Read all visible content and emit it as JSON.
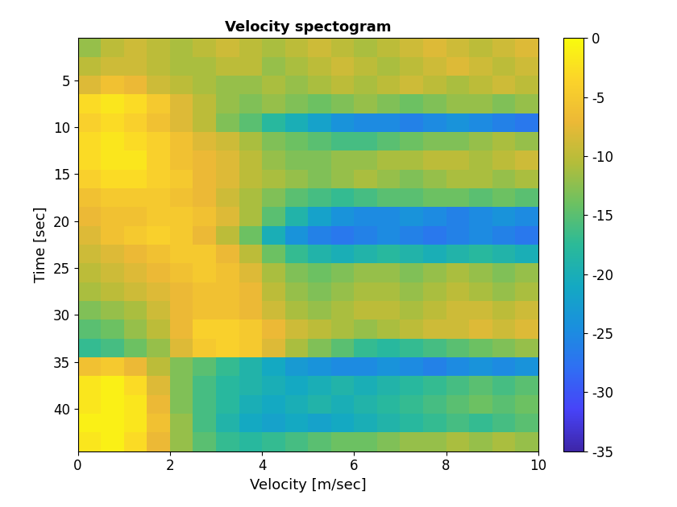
{
  "chart_data": {
    "type": "heatmap",
    "title": "Velocity spectogram",
    "x_label": "Velocity [m/sec]",
    "y_label": "Time [sec]",
    "x_edges": [
      0,
      0.5,
      1,
      1.5,
      2,
      2.5,
      3,
      3.5,
      4,
      4.5,
      5,
      5.5,
      6,
      6.5,
      7,
      7.5,
      8,
      8.5,
      9,
      9.5,
      10
    ],
    "y_edges": [
      0.5,
      2.5,
      4.5,
      6.5,
      8.5,
      10.5,
      12.5,
      14.5,
      16.5,
      18.5,
      20.5,
      22.5,
      24.5,
      26.5,
      28.5,
      30.5,
      32.5,
      34.5,
      36.5,
      38.5,
      40.5,
      42.5,
      44.5
    ],
    "xlim": [
      0,
      10
    ],
    "xticks": [
      0,
      2,
      4,
      6,
      8,
      10
    ],
    "ylim": [
      44.5,
      0.5
    ],
    "yticks": [
      5,
      10,
      15,
      20,
      25,
      30,
      35,
      40
    ],
    "clim": [
      -35,
      0
    ],
    "cticks": [
      -35,
      -30,
      -25,
      -20,
      -15,
      -10,
      -5,
      0
    ],
    "cells": [
      [
        -12,
        -10,
        -9,
        -10,
        -11,
        -10,
        -9,
        -10,
        -11,
        -10,
        -9,
        -10,
        -11,
        -10,
        -9,
        -8,
        -9,
        -10,
        -9,
        -8
      ],
      [
        -10,
        -9,
        -9,
        -10,
        -11,
        -11,
        -10,
        -10,
        -12,
        -11,
        -10,
        -9,
        -10,
        -11,
        -10,
        -9,
        -8,
        -9,
        -10,
        -9
      ],
      [
        -8,
        -6,
        -7,
        -9,
        -10,
        -11,
        -12,
        -12,
        -11,
        -12,
        -11,
        -10,
        -11,
        -10,
        -9,
        -10,
        -11,
        -10,
        -9,
        -10
      ],
      [
        -3,
        -2,
        -3,
        -5,
        -8,
        -10,
        -12,
        -13,
        -12,
        -13,
        -14,
        -13,
        -12,
        -13,
        -14,
        -13,
        -12,
        -12,
        -13,
        -12
      ],
      [
        -4,
        -3,
        -4,
        -6,
        -8,
        -10,
        -13,
        -15,
        -18,
        -20,
        -22,
        -24,
        -25,
        -25,
        -26,
        -25,
        -24,
        -25,
        -26,
        -27
      ],
      [
        -3,
        -2,
        -3,
        -4,
        -6,
        -8,
        -9,
        -11,
        -13,
        -14,
        -15,
        -16,
        -16,
        -15,
        -14,
        -13,
        -13,
        -12,
        -11,
        -12
      ],
      [
        -3,
        -2,
        -2,
        -4,
        -6,
        -7,
        -8,
        -10,
        -12,
        -13,
        -13,
        -12,
        -12,
        -11,
        -11,
        -10,
        -10,
        -11,
        -10,
        -9
      ],
      [
        -4,
        -3,
        -3,
        -4,
        -5,
        -7,
        -8,
        -10,
        -11,
        -12,
        -13,
        -12,
        -11,
        -12,
        -13,
        -12,
        -11,
        -11,
        -12,
        -11
      ],
      [
        -6,
        -5,
        -5,
        -5,
        -6,
        -7,
        -9,
        -11,
        -13,
        -15,
        -16,
        -17,
        -16,
        -15,
        -15,
        -14,
        -14,
        -15,
        -14,
        -15
      ],
      [
        -7,
        -6,
        -6,
        -5,
        -5,
        -6,
        -8,
        -11,
        -15,
        -19,
        -22,
        -24,
        -25,
        -25,
        -24,
        -25,
        -26,
        -25,
        -24,
        -25
      ],
      [
        -8,
        -6,
        -5,
        -4,
        -5,
        -7,
        -10,
        -14,
        -20,
        -24,
        -26,
        -27,
        -26,
        -25,
        -26,
        -27,
        -26,
        -25,
        -26,
        -27
      ],
      [
        -9,
        -8,
        -7,
        -6,
        -5,
        -5,
        -7,
        -10,
        -14,
        -17,
        -19,
        -20,
        -19,
        -18,
        -19,
        -20,
        -19,
        -18,
        -19,
        -20
      ],
      [
        -10,
        -9,
        -8,
        -7,
        -6,
        -5,
        -6,
        -8,
        -11,
        -13,
        -14,
        -13,
        -12,
        -12,
        -13,
        -12,
        -11,
        -12,
        -13,
        -12
      ],
      [
        -11,
        -10,
        -9,
        -8,
        -7,
        -6,
        -6,
        -7,
        -10,
        -12,
        -13,
        -12,
        -11,
        -11,
        -12,
        -11,
        -10,
        -11,
        -12,
        -11
      ],
      [
        -13,
        -12,
        -11,
        -9,
        -7,
        -6,
        -6,
        -7,
        -9,
        -11,
        -12,
        -11,
        -10,
        -10,
        -11,
        -10,
        -9,
        -9,
        -10,
        -9
      ],
      [
        -15,
        -14,
        -12,
        -10,
        -7,
        -4,
        -4,
        -5,
        -7,
        -9,
        -10,
        -11,
        -12,
        -11,
        -10,
        -9,
        -9,
        -8,
        -9,
        -8
      ],
      [
        -17,
        -16,
        -14,
        -12,
        -8,
        -5,
        -4,
        -5,
        -8,
        -11,
        -13,
        -15,
        -17,
        -18,
        -17,
        -16,
        -15,
        -14,
        -13,
        -12
      ],
      [
        -6,
        -5,
        -7,
        -10,
        -13,
        -15,
        -17,
        -19,
        -21,
        -23,
        -24,
        -25,
        -25,
        -24,
        -25,
        -26,
        -25,
        -24,
        -25,
        -24
      ],
      [
        -2,
        -1,
        -3,
        -8,
        -13,
        -16,
        -18,
        -19,
        -20,
        -21,
        -20,
        -19,
        -20,
        -19,
        -18,
        -17,
        -16,
        -15,
        -16,
        -15
      ],
      [
        -2,
        -1,
        -2,
        -7,
        -13,
        -16,
        -18,
        -20,
        -21,
        -20,
        -19,
        -20,
        -19,
        -18,
        -17,
        -16,
        -15,
        -14,
        -15,
        -14
      ],
      [
        -1,
        -1,
        -2,
        -6,
        -12,
        -16,
        -19,
        -21,
        -22,
        -21,
        -22,
        -21,
        -20,
        -19,
        -18,
        -17,
        -16,
        -17,
        -16,
        -15
      ],
      [
        -2,
        -1,
        -3,
        -7,
        -12,
        -15,
        -17,
        -18,
        -17,
        -16,
        -15,
        -14,
        -14,
        -13,
        -12,
        -12,
        -11,
        -12,
        -11,
        -12
      ]
    ]
  }
}
